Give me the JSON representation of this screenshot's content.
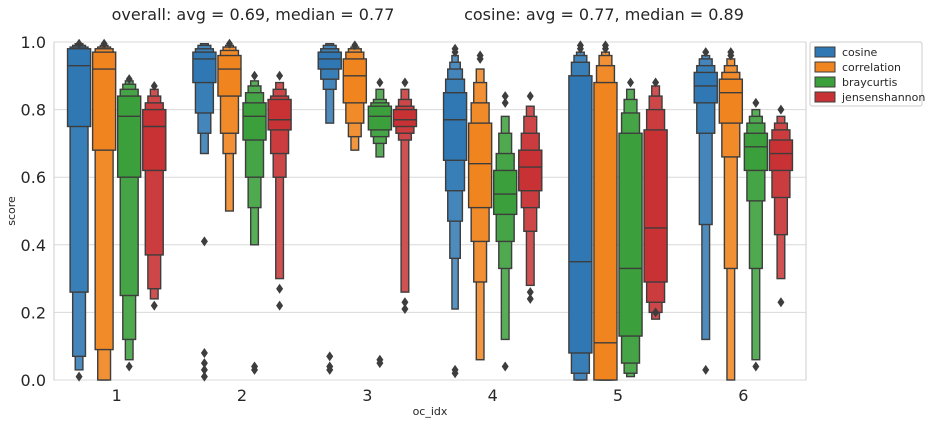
{
  "chart_data": {
    "type": "boxen",
    "title_left": "overall:   avg = 0.69,  median = 0.77",
    "title_right": "cosine:   avg = 0.77,  median = 0.89",
    "xlabel": "oc_idx",
    "ylabel": "score",
    "ylim": [
      0,
      1
    ],
    "yticks": [
      "0.0",
      "0.2",
      "0.4",
      "0.6",
      "0.8",
      "1.0"
    ],
    "ytick_values": [
      0,
      0.2,
      0.4,
      0.6,
      0.8,
      1.0
    ],
    "categories": [
      "1",
      "2",
      "3",
      "4",
      "5",
      "6"
    ],
    "grid": "horizontal",
    "legend_position": "upper-right-outside",
    "series": [
      {
        "name": "cosine",
        "color": "#2f78b3",
        "groups": [
          {
            "median": 0.93,
            "boxes": [
              [
                0.75,
                0.98
              ],
              [
                0.26,
                0.985
              ],
              [
                0.07,
                0.99
              ],
              [
                0.03,
                0.995
              ]
            ],
            "outliers": [
              0.01,
              0.995
            ]
          },
          {
            "median": 0.95,
            "boxes": [
              [
                0.88,
                0.97
              ],
              [
                0.79,
                0.98
              ],
              [
                0.73,
                0.99
              ],
              [
                0.67,
                0.995
              ]
            ],
            "outliers": [
              0.08,
              0.05,
              0.03,
              0.01,
              0.41
            ]
          },
          {
            "median": 0.95,
            "boxes": [
              [
                0.92,
                0.97
              ],
              [
                0.89,
                0.98
              ],
              [
                0.86,
                0.99
              ],
              [
                0.76,
                0.995
              ]
            ],
            "outliers": [
              0.04,
              0.03,
              0.07
            ]
          },
          {
            "median": 0.77,
            "boxes": [
              [
                0.65,
                0.85
              ],
              [
                0.56,
                0.89
              ],
              [
                0.47,
                0.92
              ],
              [
                0.36,
                0.94
              ],
              [
                0.21,
                0.96
              ]
            ],
            "outliers": [
              0.03,
              0.02,
              0.97,
              0.98
            ]
          },
          {
            "median": 0.35,
            "boxes": [
              [
                0.08,
                0.9
              ],
              [
                0.02,
                0.94
              ],
              [
                0.0,
                0.96
              ],
              [
                0.0,
                0.97
              ]
            ],
            "outliers": [
              0.98,
              0.99
            ]
          },
          {
            "median": 0.87,
            "boxes": [
              [
                0.82,
                0.91
              ],
              [
                0.73,
                0.93
              ],
              [
                0.46,
                0.95
              ],
              [
                0.12,
                0.96
              ]
            ],
            "outliers": [
              0.03,
              0.97
            ]
          }
        ]
      },
      {
        "name": "correlation",
        "color": "#f0841e",
        "groups": [
          {
            "median": 0.92,
            "boxes": [
              [
                0.68,
                0.97
              ],
              [
                0.09,
                0.98
              ],
              [
                0.0,
                0.985
              ],
              [
                0.0,
                0.99
              ]
            ],
            "outliers": [
              0.995
            ]
          },
          {
            "median": 0.92,
            "boxes": [
              [
                0.84,
                0.96
              ],
              [
                0.73,
                0.975
              ],
              [
                0.67,
                0.985
              ],
              [
                0.5,
                0.99
              ]
            ],
            "outliers": [
              0.995
            ]
          },
          {
            "median": 0.9,
            "boxes": [
              [
                0.82,
                0.95
              ],
              [
                0.76,
                0.97
              ],
              [
                0.72,
                0.98
              ],
              [
                0.68,
                0.985
              ]
            ],
            "outliers": [
              0.99
            ]
          },
          {
            "median": 0.64,
            "boxes": [
              [
                0.51,
                0.76
              ],
              [
                0.41,
                0.82
              ],
              [
                0.29,
                0.88
              ],
              [
                0.06,
                0.92
              ]
            ],
            "outliers": [
              0.95,
              0.96
            ]
          },
          {
            "median": 0.11,
            "boxes": [
              [
                0.0,
                0.88
              ],
              [
                0.0,
                0.93
              ],
              [
                0.0,
                0.96
              ],
              [
                0.0,
                0.97
              ]
            ],
            "outliers": [
              0.98,
              0.99
            ]
          },
          {
            "median": 0.85,
            "boxes": [
              [
                0.76,
                0.89
              ],
              [
                0.66,
                0.91
              ],
              [
                0.33,
                0.93
              ],
              [
                0.0,
                0.95
              ]
            ],
            "outliers": [
              0.96,
              0.97
            ]
          }
        ]
      },
      {
        "name": "braycurtis",
        "color": "#3b9f3b",
        "groups": [
          {
            "median": 0.78,
            "boxes": [
              [
                0.6,
                0.84
              ],
              [
                0.25,
                0.86
              ],
              [
                0.12,
                0.875
              ],
              [
                0.06,
                0.885
              ]
            ],
            "outliers": [
              0.04,
              0.89
            ]
          },
          {
            "median": 0.78,
            "boxes": [
              [
                0.71,
                0.82
              ],
              [
                0.6,
                0.85
              ],
              [
                0.51,
                0.87
              ],
              [
                0.4,
                0.885
              ]
            ],
            "outliers": [
              0.04,
              0.03,
              0.9
            ]
          },
          {
            "median": 0.78,
            "boxes": [
              [
                0.74,
                0.81
              ],
              [
                0.72,
                0.82
              ],
              [
                0.7,
                0.83
              ],
              [
                0.66,
                0.86
              ]
            ],
            "outliers": [
              0.06,
              0.05,
              0.88
            ]
          },
          {
            "median": 0.55,
            "boxes": [
              [
                0.49,
                0.62
              ],
              [
                0.41,
                0.67
              ],
              [
                0.33,
                0.73
              ],
              [
                0.12,
                0.78
              ]
            ],
            "outliers": [
              0.04,
              0.82,
              0.84
            ]
          },
          {
            "median": 0.33,
            "boxes": [
              [
                0.13,
                0.73
              ],
              [
                0.05,
                0.79
              ],
              [
                0.02,
                0.83
              ],
              [
                0.01,
                0.86
              ]
            ],
            "outliers": [
              0.88
            ]
          },
          {
            "median": 0.69,
            "boxes": [
              [
                0.62,
                0.73
              ],
              [
                0.53,
                0.76
              ],
              [
                0.33,
                0.78
              ],
              [
                0.06,
                0.8
              ]
            ],
            "outliers": [
              0.04,
              0.82
            ]
          }
        ]
      },
      {
        "name": "jensenshannon",
        "color": "#c83234",
        "groups": [
          {
            "median": 0.75,
            "boxes": [
              [
                0.62,
                0.8
              ],
              [
                0.37,
                0.82
              ],
              [
                0.27,
                0.84
              ],
              [
                0.24,
                0.86
              ]
            ],
            "outliers": [
              0.22,
              0.87
            ]
          },
          {
            "median": 0.77,
            "boxes": [
              [
                0.74,
                0.83
              ],
              [
                0.67,
                0.84
              ],
              [
                0.6,
                0.86
              ],
              [
                0.3,
                0.88
              ]
            ],
            "outliers": [
              0.27,
              0.22,
              0.9
            ]
          },
          {
            "median": 0.77,
            "boxes": [
              [
                0.75,
                0.8
              ],
              [
                0.73,
                0.81
              ],
              [
                0.71,
                0.83
              ],
              [
                0.26,
                0.86
              ]
            ],
            "outliers": [
              0.23,
              0.21,
              0.88
            ]
          },
          {
            "median": 0.63,
            "boxes": [
              [
                0.56,
                0.68
              ],
              [
                0.51,
                0.73
              ],
              [
                0.44,
                0.78
              ],
              [
                0.28,
                0.81
              ]
            ],
            "outliers": [
              0.26,
              0.24,
              0.84
            ]
          },
          {
            "median": 0.45,
            "boxes": [
              [
                0.29,
                0.74
              ],
              [
                0.23,
                0.8
              ],
              [
                0.2,
                0.84
              ],
              [
                0.18,
                0.87
              ]
            ],
            "outliers": [
              0.2,
              0.88
            ]
          },
          {
            "median": 0.67,
            "boxes": [
              [
                0.62,
                0.71
              ],
              [
                0.54,
                0.74
              ],
              [
                0.43,
                0.76
              ],
              [
                0.3,
                0.78
              ]
            ],
            "outliers": [
              0.23,
              0.8
            ]
          }
        ]
      }
    ]
  }
}
